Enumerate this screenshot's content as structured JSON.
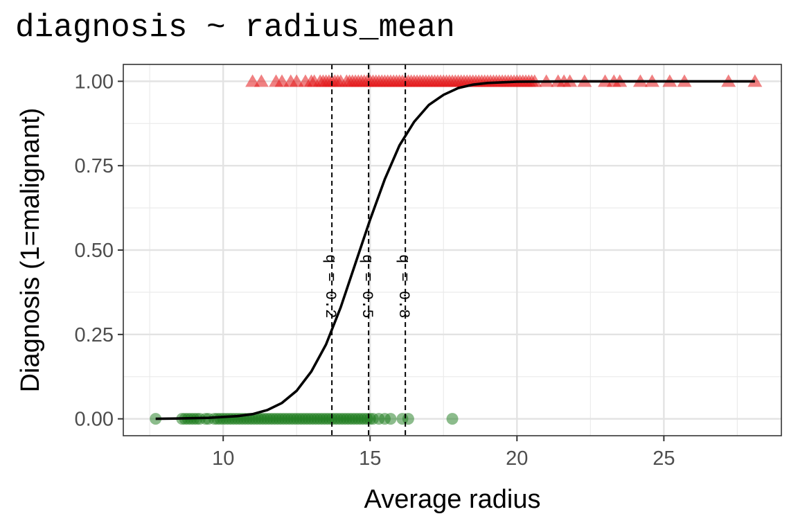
{
  "chart_data": {
    "type": "scatter",
    "title": "diagnosis ~ radius_mean",
    "xlabel": "Average radius",
    "ylabel": "Diagnosis (1=malignant)",
    "xlim": [
      6.6,
      29.0
    ],
    "ylim": [
      -0.05,
      1.05
    ],
    "x_ticks": [
      10,
      15,
      20,
      25
    ],
    "x_tick_labels": [
      "10",
      "15",
      "20",
      "25"
    ],
    "y_ticks": [
      0,
      0.25,
      0.5,
      0.75,
      1.0
    ],
    "y_tick_labels": [
      "0.00",
      "0.25",
      "0.50",
      "0.75",
      "1.00"
    ],
    "grid": true,
    "legend": "none",
    "series": [
      {
        "marker": "circle",
        "color": "#1a7a1a",
        "y": 0,
        "x": [
          7.7,
          8.6,
          8.7,
          8.8,
          8.9,
          9.0,
          9.1,
          9.2,
          9.4,
          9.5,
          9.7,
          9.8,
          9.9,
          10.0,
          10.1,
          10.2,
          10.3,
          10.4,
          10.5,
          10.6,
          10.7,
          10.8,
          10.9,
          11.0,
          11.1,
          11.2,
          11.3,
          11.4,
          11.5,
          11.6,
          11.7,
          11.8,
          11.9,
          12.0,
          12.1,
          12.2,
          12.3,
          12.4,
          12.5,
          12.6,
          12.7,
          12.8,
          12.9,
          13.0,
          13.1,
          13.2,
          13.3,
          13.4,
          13.5,
          13.6,
          13.7,
          13.8,
          13.9,
          14.0,
          14.1,
          14.2,
          14.3,
          14.4,
          14.5,
          14.6,
          14.7,
          14.8,
          14.9,
          15.0,
          15.1,
          15.3,
          15.5,
          15.7,
          16.1,
          16.3,
          17.8
        ]
      },
      {
        "marker": "triangle",
        "color": "#e41a1c",
        "y": 1,
        "x": [
          11.0,
          11.3,
          11.8,
          12.0,
          12.3,
          12.5,
          12.8,
          13.0,
          13.1,
          13.3,
          13.4,
          13.5,
          13.6,
          13.7,
          13.8,
          13.9,
          14.0,
          14.2,
          14.3,
          14.4,
          14.5,
          14.6,
          14.7,
          14.8,
          14.9,
          15.0,
          15.1,
          15.2,
          15.3,
          15.4,
          15.5,
          15.6,
          15.7,
          15.8,
          15.9,
          16.0,
          16.1,
          16.2,
          16.3,
          16.4,
          16.5,
          16.6,
          16.7,
          16.8,
          16.9,
          17.0,
          17.1,
          17.2,
          17.3,
          17.4,
          17.5,
          17.6,
          17.7,
          17.8,
          17.9,
          18.0,
          18.1,
          18.2,
          18.3,
          18.4,
          18.5,
          18.6,
          18.7,
          18.8,
          18.9,
          19.0,
          19.1,
          19.2,
          19.3,
          19.4,
          19.5,
          19.6,
          19.7,
          19.8,
          19.9,
          20.0,
          20.1,
          20.2,
          20.3,
          20.4,
          20.5,
          20.6,
          21.0,
          21.4,
          21.6,
          21.8,
          22.3,
          23.0,
          23.3,
          23.5,
          24.2,
          24.6,
          25.2,
          25.7,
          27.2,
          28.1
        ]
      }
    ],
    "curve": {
      "type": "logistic",
      "color": "#000000",
      "points": [
        [
          7.7,
          0.0
        ],
        [
          8.5,
          0.001
        ],
        [
          9.5,
          0.003
        ],
        [
          10.5,
          0.008
        ],
        [
          11.0,
          0.014
        ],
        [
          11.5,
          0.026
        ],
        [
          12.0,
          0.047
        ],
        [
          12.5,
          0.083
        ],
        [
          13.0,
          0.14
        ],
        [
          13.5,
          0.22
        ],
        [
          14.0,
          0.33
        ],
        [
          14.5,
          0.46
        ],
        [
          15.0,
          0.59
        ],
        [
          15.5,
          0.71
        ],
        [
          16.0,
          0.81
        ],
        [
          16.5,
          0.88
        ],
        [
          17.0,
          0.93
        ],
        [
          17.5,
          0.96
        ],
        [
          18.0,
          0.98
        ],
        [
          18.5,
          0.99
        ],
        [
          19.0,
          0.995
        ],
        [
          20.0,
          0.999
        ],
        [
          22.0,
          1.0
        ],
        [
          25.0,
          1.0
        ],
        [
          28.1,
          1.0
        ]
      ]
    },
    "vlines": [
      {
        "x": 13.7,
        "label": "q = 0.2"
      },
      {
        "x": 14.95,
        "label": "q = 0.5"
      },
      {
        "x": 16.2,
        "label": "q = 0.8"
      }
    ]
  }
}
